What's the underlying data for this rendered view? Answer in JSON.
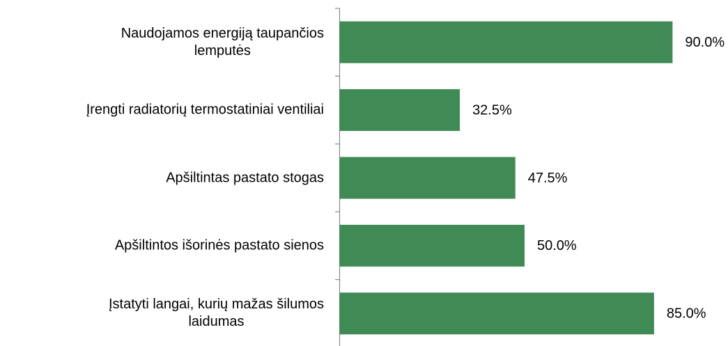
{
  "chart_data": {
    "type": "bar",
    "orientation": "horizontal",
    "categories": [
      "Naudojamos energiją taupančios\nlemputės",
      "Įrengti radiatorių termostatiniai ventiliai",
      "Apšiltintas pastato stogas",
      "Apšiltintos išorinės pastato sienos",
      "Įstatyti langai, kurių mažas šilumos\nlaidumas"
    ],
    "values": [
      90,
      32.5,
      47.5,
      50,
      85
    ],
    "value_labels": [
      "90.0%",
      "32.5%",
      "47.5%",
      "50.0%",
      "85.0%"
    ],
    "color": "#3f8a55"
  }
}
